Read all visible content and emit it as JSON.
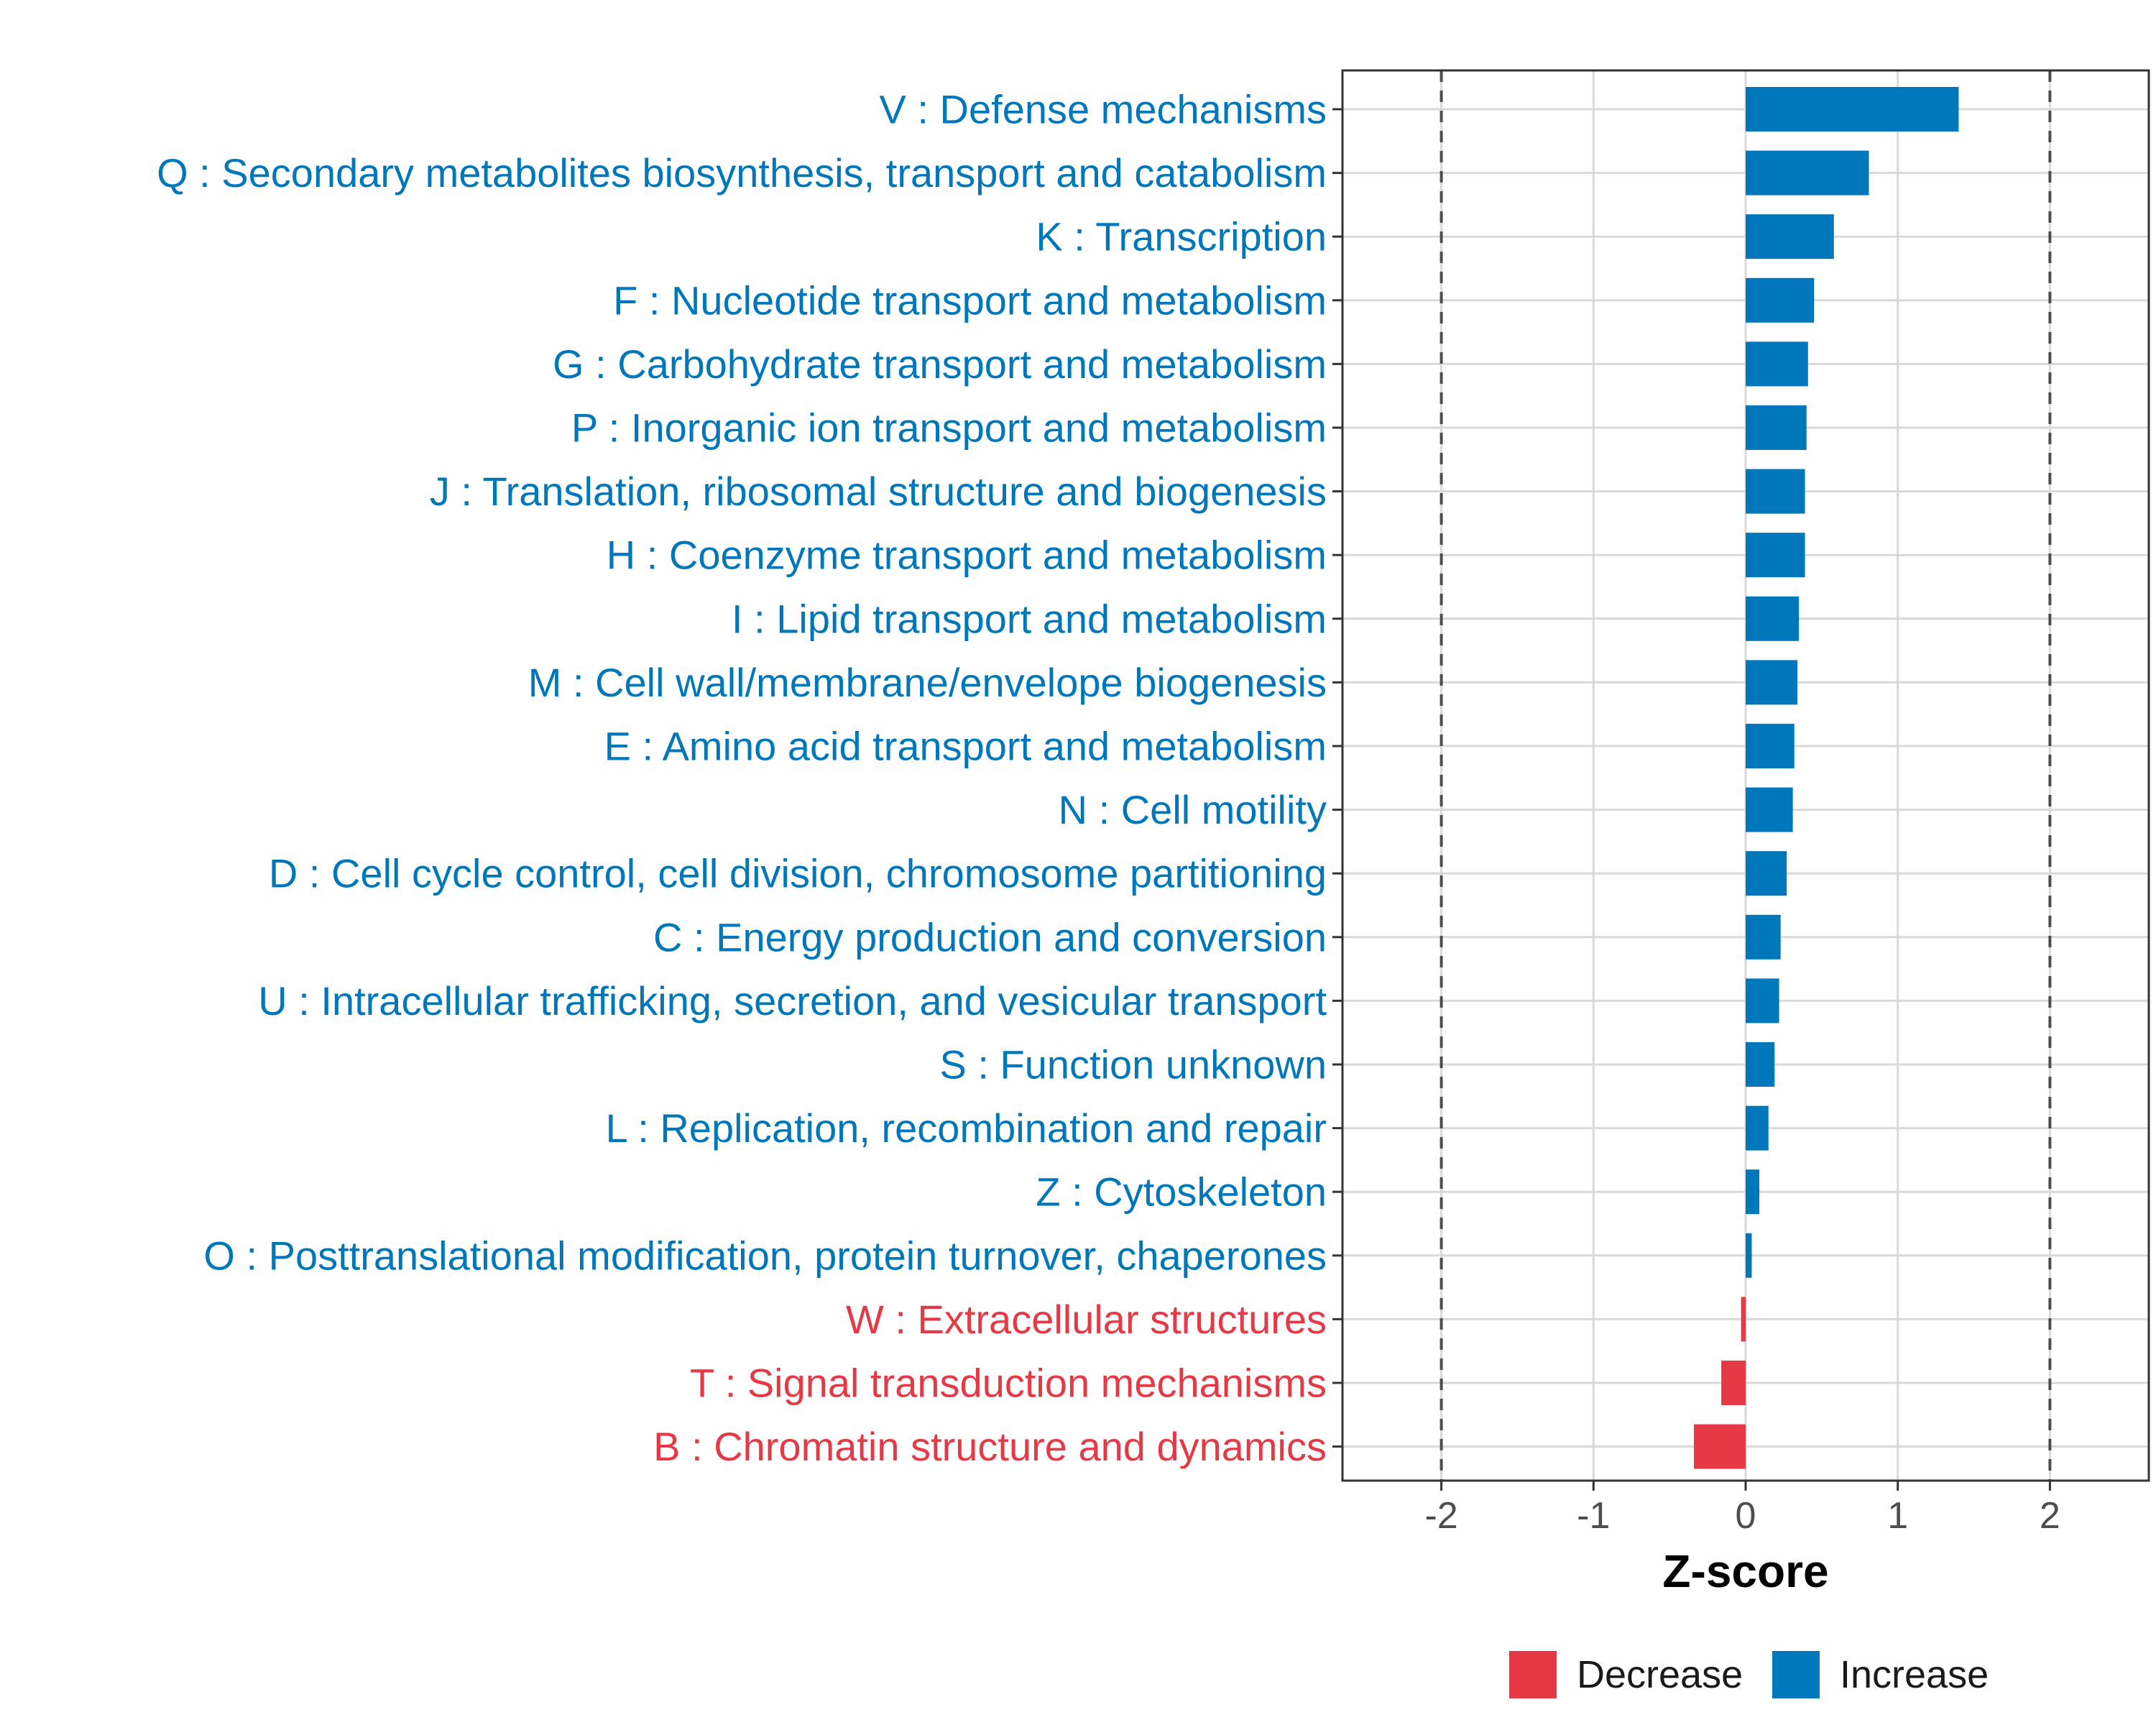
{
  "colors": {
    "increase": "#0077BB",
    "decrease": "#E63946"
  },
  "chart_data": {
    "type": "bar",
    "orientation": "horizontal",
    "xlabel": "Z-score",
    "xlim": [
      -2.65,
      2.65
    ],
    "xticks": [
      -2,
      -1,
      0,
      1,
      2
    ],
    "xtick_labels": [
      "-2",
      "-1",
      "0",
      "1",
      "2"
    ],
    "reference_lines": [
      -2,
      2
    ],
    "grid": true,
    "legend": {
      "position": "bottom",
      "entries": [
        {
          "label": "Decrease",
          "color_key": "decrease"
        },
        {
          "label": "Increase",
          "color_key": "increase"
        }
      ]
    },
    "categories": [
      "V : Defense mechanisms",
      "Q : Secondary metabolites biosynthesis, transport and catabolism",
      "K : Transcription",
      "F : Nucleotide transport and metabolism",
      "G : Carbohydrate transport and metabolism",
      "P : Inorganic ion transport and metabolism",
      "J : Translation, ribosomal structure and biogenesis",
      "H : Coenzyme transport and metabolism",
      "I : Lipid transport and metabolism",
      "M : Cell wall/membrane/envelope biogenesis",
      "E : Amino acid transport and metabolism",
      "N : Cell motility",
      "D : Cell cycle control, cell division, chromosome partitioning",
      "C : Energy production and conversion",
      "U : Intracellular trafficking, secretion, and vesicular transport",
      "S : Function unknown",
      "L : Replication, recombination and repair",
      "Z : Cytoskeleton",
      "O : Posttranslational modification, protein turnover, chaperones",
      "W : Extracellular structures",
      "T : Signal transduction mechanisms",
      "B : Chromatin structure and dynamics"
    ],
    "values": [
      1.4,
      0.81,
      0.58,
      0.45,
      0.41,
      0.4,
      0.39,
      0.39,
      0.35,
      0.34,
      0.32,
      0.31,
      0.27,
      0.23,
      0.22,
      0.19,
      0.15,
      0.09,
      0.04,
      -0.03,
      -0.16,
      -0.34
    ]
  }
}
